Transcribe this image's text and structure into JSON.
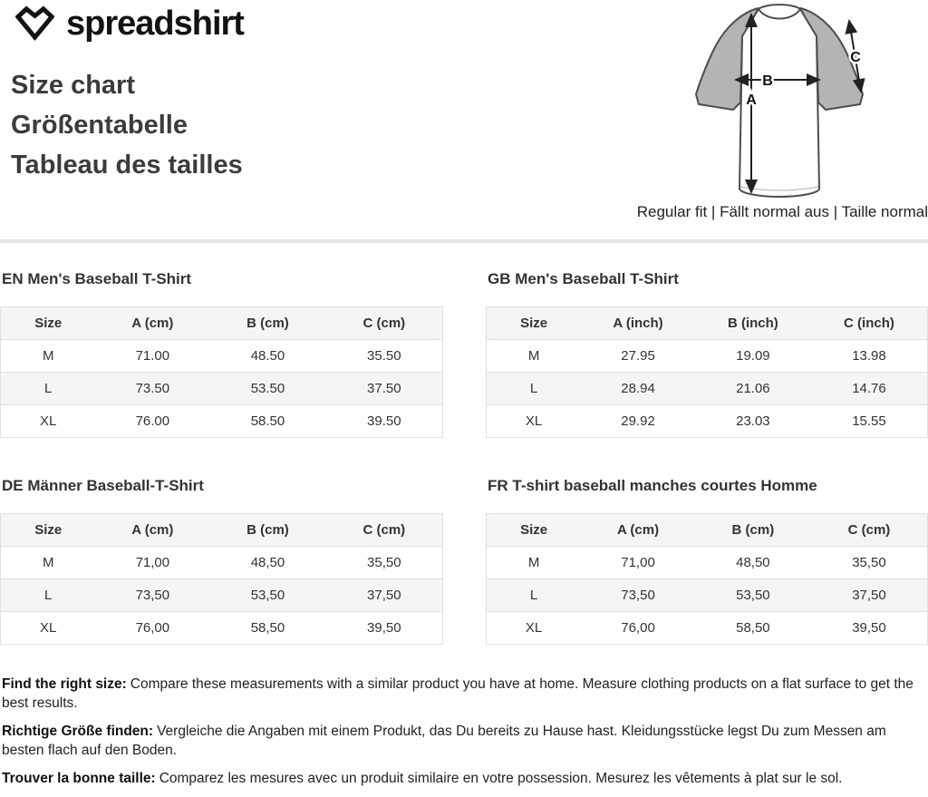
{
  "brand": {
    "logo_text": "spreadshirt"
  },
  "header": {
    "titles": [
      "Size chart",
      "Größentabelle",
      "Tableau des tailles"
    ],
    "fit_note": "Regular fit | Fällt normal aus | Taille normal"
  },
  "diagram": {
    "labels": {
      "a": "A",
      "b": "B",
      "c": "C"
    },
    "sleeve_color": "#b4b4b4",
    "outline_color": "#4d4d4d",
    "arrow_color": "#222222"
  },
  "tables": [
    {
      "title": "EN Men's Baseball T-Shirt",
      "columns": [
        "Size",
        "A (cm)",
        "B (cm)",
        "C (cm)"
      ],
      "rows": [
        [
          "M",
          "71.00",
          "48.50",
          "35.50"
        ],
        [
          "L",
          "73.50",
          "53.50",
          "37.50"
        ],
        [
          "XL",
          "76.00",
          "58.50",
          "39.50"
        ]
      ]
    },
    {
      "title": "GB Men's Baseball T-Shirt",
      "columns": [
        "Size",
        "A (inch)",
        "B (inch)",
        "C (inch)"
      ],
      "rows": [
        [
          "M",
          "27.95",
          "19.09",
          "13.98"
        ],
        [
          "L",
          "28.94",
          "21.06",
          "14.76"
        ],
        [
          "XL",
          "29.92",
          "23.03",
          "15.55"
        ]
      ]
    },
    {
      "title": "DE Männer Baseball-T-Shirt",
      "columns": [
        "Size",
        "A (cm)",
        "B (cm)",
        "C (cm)"
      ],
      "rows": [
        [
          "M",
          "71,00",
          "48,50",
          "35,50"
        ],
        [
          "L",
          "73,50",
          "53,50",
          "37,50"
        ],
        [
          "XL",
          "76,00",
          "58,50",
          "39,50"
        ]
      ]
    },
    {
      "title": "FR T-shirt baseball manches courtes Homme",
      "columns": [
        "Size",
        "A (cm)",
        "B (cm)",
        "C (cm)"
      ],
      "rows": [
        [
          "M",
          "71,00",
          "48,50",
          "35,50"
        ],
        [
          "L",
          "73,50",
          "53,50",
          "37,50"
        ],
        [
          "XL",
          "76,00",
          "58,50",
          "39,50"
        ]
      ]
    }
  ],
  "notes": [
    {
      "lead": "Find the right size:",
      "text": "Compare these measurements with a similar product you have at home. Measure clothing products on a flat surface to get the best results."
    },
    {
      "lead": "Richtige Größe finden:",
      "text": "Vergleiche die Angaben mit einem Produkt, das Du bereits zu Hause hast. Kleidungsstücke legst Du zum Messen am besten flach auf den Boden."
    },
    {
      "lead": "Trouver la bonne taille:",
      "text": "Comparez les mesures avec un produit similaire en votre possession. Mesurez les vêtements à plat sur le sol."
    }
  ],
  "colors": {
    "table_header_bg": "#f5f5f7",
    "row_alt_bg": "#f5f5f7",
    "table_border": "#e0e0e2",
    "divider": "#e3e3e3",
    "heading_text": "#3b3b3b",
    "body_text": "#333333",
    "sleeve_gray": "#b4b4b4"
  }
}
